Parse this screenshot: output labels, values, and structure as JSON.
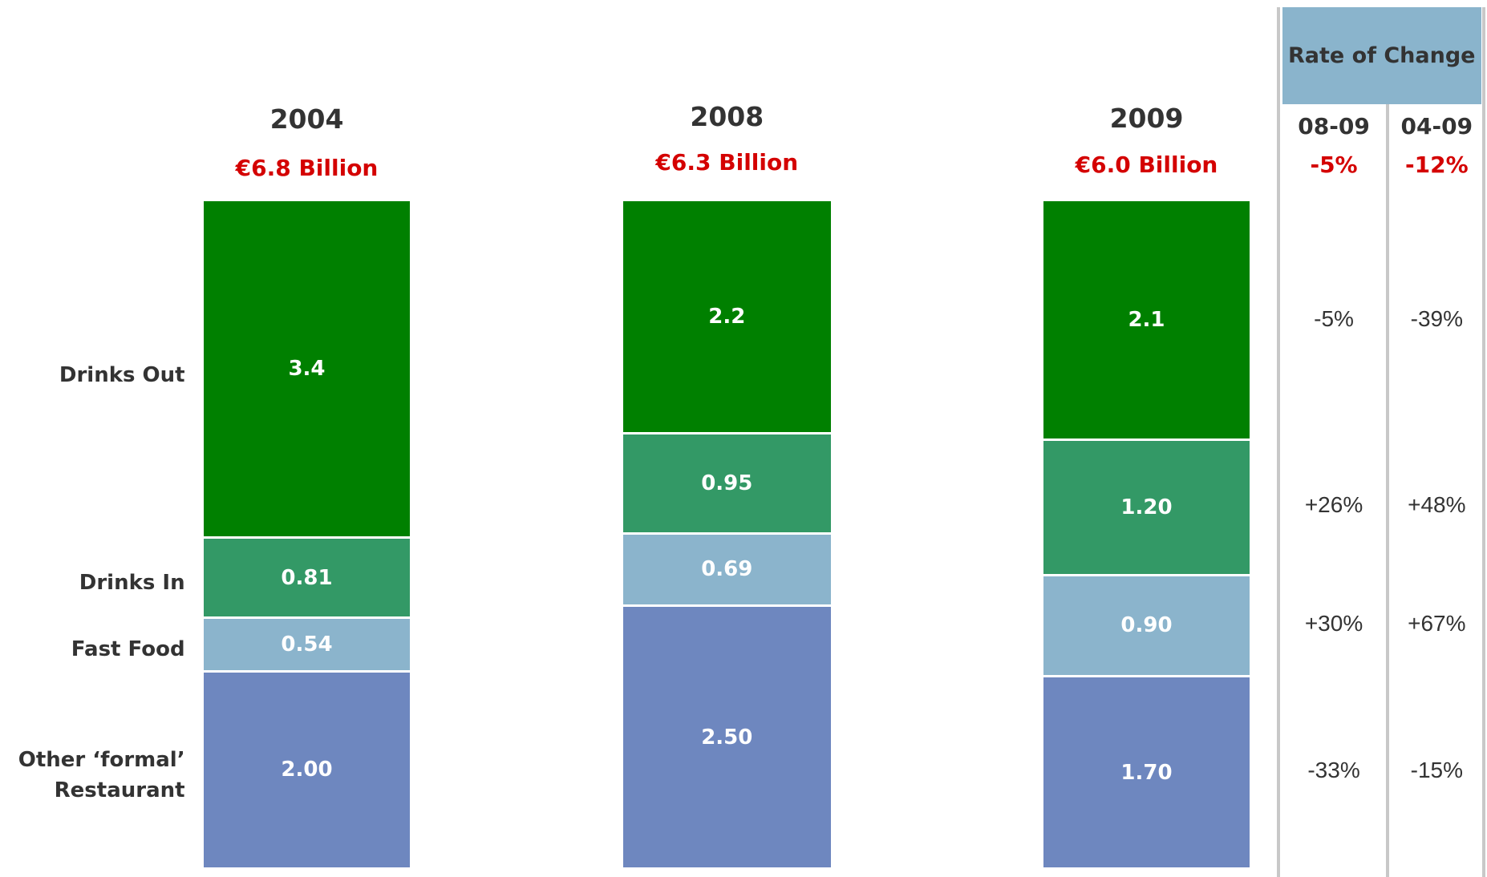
{
  "chart_data": {
    "type": "bar",
    "stacked": true,
    "normalized": true,
    "categories": [
      "2004",
      "2008",
      "2009"
    ],
    "totals": [
      "€6.8 Billion",
      "€6.3 Billion",
      "€6.0 Billion"
    ],
    "series": [
      {
        "name": "Other ‘formal’ Restaurant",
        "color": "#6e87bf",
        "values": [
          2.0,
          2.5,
          1.7
        ],
        "value_labels": [
          "2.00",
          "2.50",
          "1.70"
        ]
      },
      {
        "name": "Fast Food",
        "color": "#8bb4cc",
        "values": [
          0.54,
          0.69,
          0.9
        ],
        "value_labels": [
          "0.54",
          "0.69",
          "0.90"
        ]
      },
      {
        "name": "Drinks In",
        "color": "#339966",
        "values": [
          0.81,
          0.95,
          1.2
        ],
        "value_labels": [
          "0.81",
          "0.95",
          "1.20"
        ]
      },
      {
        "name": "Drinks Out",
        "color": "#008000",
        "values": [
          3.4,
          2.2,
          2.1
        ],
        "value_labels": [
          "3.4",
          "2.2",
          "2.1"
        ]
      }
    ],
    "rate_of_change": {
      "title": "Rate of Change",
      "color": "#8ab4cc",
      "columns": [
        "08-09",
        "04-09"
      ],
      "total": [
        "-5%",
        "-12%"
      ],
      "rows": [
        [
          "-33%",
          "-15%"
        ],
        [
          "+30%",
          "+67%"
        ],
        [
          "+26%",
          "+48%"
        ],
        [
          "-5%",
          "-39%"
        ]
      ]
    }
  }
}
